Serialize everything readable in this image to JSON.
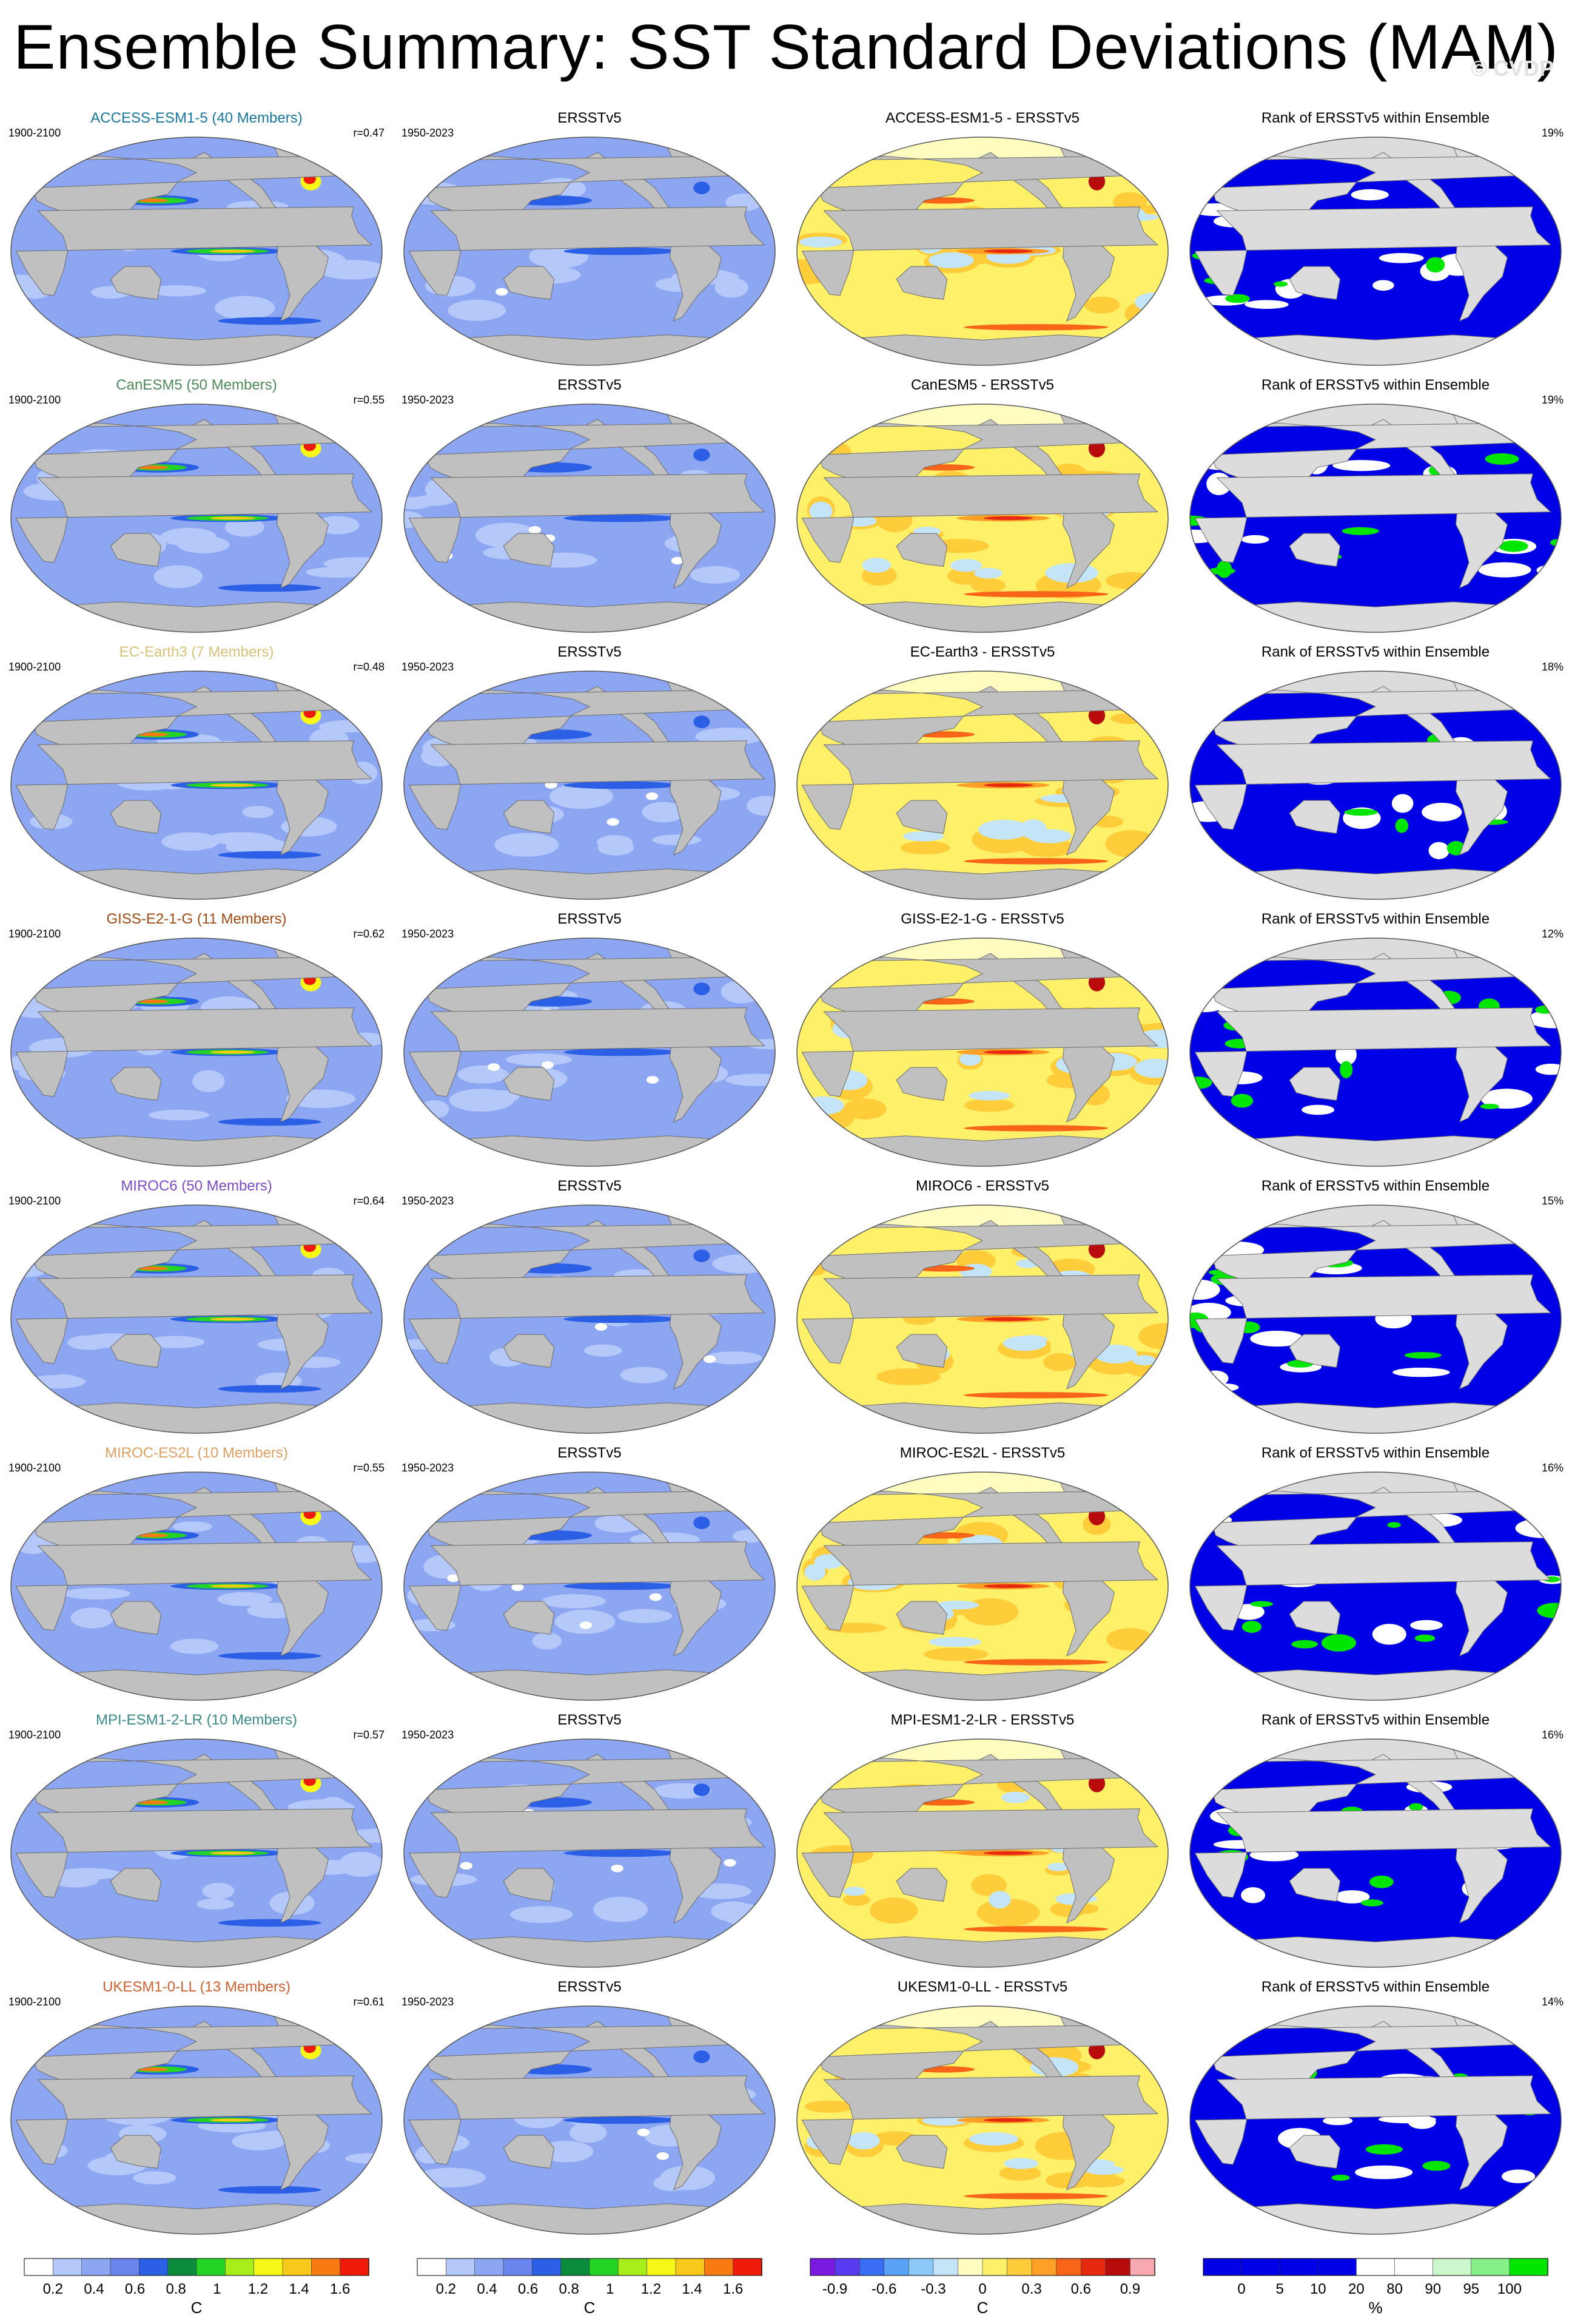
{
  "title": "Ensemble Summary: SST Standard Deviations (MAM)",
  "watermark": "© CVDP",
  "colors": {
    "land": "#c0c0c0",
    "rank_land": "#dcdcdc",
    "std_palette": [
      "#ffffff",
      "#b4c8fa",
      "#8ca6f2",
      "#6a85ee",
      "#2a5fe6",
      "#0a8c3c",
      "#24d424",
      "#a8ee1a",
      "#f8f816",
      "#f8c81a",
      "#f87a12",
      "#f01a0a"
    ],
    "diff_palette": [
      "#7a1ae0",
      "#5a3af0",
      "#3a6cf6",
      "#5aa2f6",
      "#8cc8f8",
      "#c4e4f8",
      "#fffcc0",
      "#fff06a",
      "#ffcc3a",
      "#ffa026",
      "#f86418",
      "#e62a10",
      "#b80c0c",
      "#f8a8b0"
    ],
    "rank_palette": [
      "#0000e6",
      "#0000e6",
      "#0000e6",
      "#0000e6",
      "#ffffff",
      "#ffffff",
      "#ccf6cc",
      "#88f088",
      "#00e600"
    ],
    "model_title_colors": [
      "#1a78a0",
      "#4e8a5a",
      "#d8c278",
      "#a04a14",
      "#7a4cc8",
      "#e0a060",
      "#3a8a8a",
      "#d06030"
    ]
  },
  "rows": [
    {
      "model": "ACCESS-ESM1-5 (40 Members)",
      "model_short": "ACCESS-ESM1-5",
      "model_period": "1900-2100",
      "obs_period": "1950-2023",
      "r": "r=0.47",
      "diff_title": "ACCESS-ESM1-5 - ERSSTv5",
      "rank_pct": "19%"
    },
    {
      "model": "CanESM5 (50 Members)",
      "model_short": "CanESM5",
      "model_period": "1900-2100",
      "obs_period": "1950-2023",
      "r": "r=0.55",
      "diff_title": "CanESM5 - ERSSTv5",
      "rank_pct": "19%"
    },
    {
      "model": "EC-Earth3 (7 Members)",
      "model_short": "EC-Earth3",
      "model_period": "1900-2100",
      "obs_period": "1950-2023",
      "r": "r=0.48",
      "diff_title": "EC-Earth3 - ERSSTv5",
      "rank_pct": "18%"
    },
    {
      "model": "GISS-E2-1-G (11 Members)",
      "model_short": "GISS-E2-1-G",
      "model_period": "1900-2100",
      "obs_period": "1950-2023",
      "r": "r=0.62",
      "diff_title": "GISS-E2-1-G - ERSSTv5",
      "rank_pct": "12%"
    },
    {
      "model": "MIROC6 (50 Members)",
      "model_short": "MIROC6",
      "model_period": "1900-2100",
      "obs_period": "1950-2023",
      "r": "r=0.64",
      "diff_title": "MIROC6 - ERSSTv5",
      "rank_pct": "15%"
    },
    {
      "model": "MIROC-ES2L (10 Members)",
      "model_short": "MIROC-ES2L",
      "model_period": "1900-2100",
      "obs_period": "1950-2023",
      "r": "r=0.55",
      "diff_title": "MIROC-ES2L - ERSSTv5",
      "rank_pct": "16%"
    },
    {
      "model": "MPI-ESM1-2-LR (10 Members)",
      "model_short": "MPI-ESM1-2-LR",
      "model_period": "1900-2100",
      "obs_period": "1950-2023",
      "r": "r=0.57",
      "diff_title": "MPI-ESM1-2-LR - ERSSTv5",
      "rank_pct": "16%"
    },
    {
      "model": "UKESM1-0-LL (13 Members)",
      "model_short": "UKESM1-0-LL",
      "model_period": "1900-2100",
      "obs_period": "1950-2023",
      "r": "r=0.61",
      "diff_title": "UKESM1-0-LL - ERSSTv5",
      "rank_pct": "14%"
    }
  ],
  "obs_title": "ERSSTv5",
  "rank_title": "Rank of ERSSTv5 within Ensemble",
  "colorbars": [
    {
      "id": "std-model",
      "labels": [
        "0.2",
        "0.4",
        "0.6",
        "0.8",
        "1",
        "1.2",
        "1.4",
        "1.6"
      ],
      "unit": "C"
    },
    {
      "id": "std-obs",
      "labels": [
        "0.2",
        "0.4",
        "0.6",
        "0.8",
        "1",
        "1.2",
        "1.4",
        "1.6"
      ],
      "unit": "C"
    },
    {
      "id": "diff",
      "labels": [
        "-0.9",
        "-0.6",
        "-0.3",
        "0",
        "0.3",
        "0.6",
        "0.9"
      ],
      "unit": "C"
    },
    {
      "id": "rank",
      "labels": [
        "0",
        "5",
        "10",
        "20",
        "80",
        "90",
        "95",
        "100"
      ],
      "unit": "%"
    }
  ]
}
